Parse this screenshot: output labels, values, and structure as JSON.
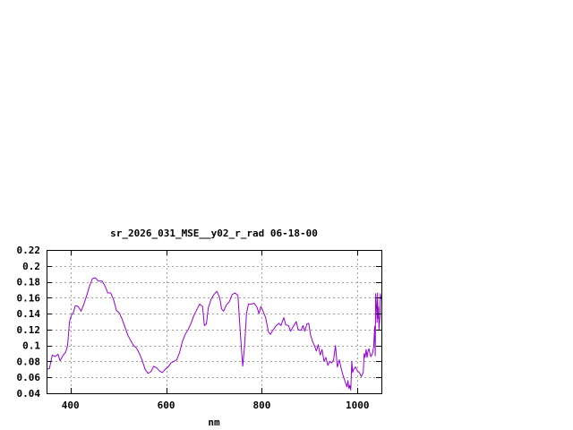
{
  "chart_data": {
    "type": "line",
    "title": "sr_2026_031_MSE__y02_r_rad 06-18-00",
    "xlabel": "nm",
    "ylabel": "",
    "xlim": [
      350,
      1050
    ],
    "ylim": [
      0.04,
      0.22
    ],
    "xticks": [
      400,
      600,
      800,
      1000
    ],
    "xtick_labels": [
      "400",
      "600",
      "800",
      "1000"
    ],
    "yticks": [
      0.04,
      0.06,
      0.08,
      0.1,
      0.12,
      0.14,
      0.16,
      0.18,
      0.2,
      0.22
    ],
    "ytick_labels": [
      "0.04",
      "0.06",
      "0.08",
      "0.1",
      "0.12",
      "0.14",
      "0.16",
      "0.18",
      "0.2",
      "0.22"
    ],
    "grid": true,
    "line_color": "#9400d3",
    "series": [
      {
        "values": [
          [
            350,
            0.07
          ],
          [
            356,
            0.071
          ],
          [
            362,
            0.088
          ],
          [
            368,
            0.086
          ],
          [
            374,
            0.089
          ],
          [
            378,
            0.081
          ],
          [
            384,
            0.087
          ],
          [
            390,
            0.092
          ],
          [
            394,
            0.1
          ],
          [
            398,
            0.13
          ],
          [
            402,
            0.138
          ],
          [
            406,
            0.141
          ],
          [
            410,
            0.15
          ],
          [
            416,
            0.149
          ],
          [
            422,
            0.143
          ],
          [
            428,
            0.152
          ],
          [
            434,
            0.163
          ],
          [
            440,
            0.175
          ],
          [
            446,
            0.184
          ],
          [
            452,
            0.185
          ],
          [
            458,
            0.181
          ],
          [
            466,
            0.181
          ],
          [
            472,
            0.175
          ],
          [
            478,
            0.166
          ],
          [
            484,
            0.166
          ],
          [
            490,
            0.158
          ],
          [
            496,
            0.144
          ],
          [
            502,
            0.141
          ],
          [
            508,
            0.133
          ],
          [
            514,
            0.123
          ],
          [
            520,
            0.113
          ],
          [
            526,
            0.106
          ],
          [
            532,
            0.1
          ],
          [
            538,
            0.097
          ],
          [
            544,
            0.09
          ],
          [
            550,
            0.081
          ],
          [
            556,
            0.07
          ],
          [
            562,
            0.065
          ],
          [
            568,
            0.067
          ],
          [
            574,
            0.074
          ],
          [
            580,
            0.072
          ],
          [
            586,
            0.068
          ],
          [
            592,
            0.066
          ],
          [
            598,
            0.07
          ],
          [
            604,
            0.073
          ],
          [
            610,
            0.078
          ],
          [
            616,
            0.08
          ],
          [
            622,
            0.082
          ],
          [
            628,
            0.091
          ],
          [
            634,
            0.105
          ],
          [
            640,
            0.114
          ],
          [
            646,
            0.12
          ],
          [
            652,
            0.128
          ],
          [
            658,
            0.138
          ],
          [
            664,
            0.145
          ],
          [
            670,
            0.152
          ],
          [
            676,
            0.149
          ],
          [
            680,
            0.125
          ],
          [
            684,
            0.127
          ],
          [
            688,
            0.147
          ],
          [
            694,
            0.158
          ],
          [
            700,
            0.164
          ],
          [
            706,
            0.168
          ],
          [
            712,
            0.16
          ],
          [
            716,
            0.146
          ],
          [
            720,
            0.143
          ],
          [
            726,
            0.151
          ],
          [
            732,
            0.155
          ],
          [
            738,
            0.164
          ],
          [
            744,
            0.166
          ],
          [
            750,
            0.163
          ],
          [
            756,
            0.108
          ],
          [
            760,
            0.074
          ],
          [
            764,
            0.1
          ],
          [
            768,
            0.14
          ],
          [
            772,
            0.152
          ],
          [
            778,
            0.152
          ],
          [
            784,
            0.153
          ],
          [
            790,
            0.148
          ],
          [
            794,
            0.14
          ],
          [
            798,
            0.149
          ],
          [
            802,
            0.144
          ],
          [
            808,
            0.135
          ],
          [
            814,
            0.117
          ],
          [
            818,
            0.114
          ],
          [
            824,
            0.12
          ],
          [
            830,
            0.125
          ],
          [
            836,
            0.128
          ],
          [
            840,
            0.125
          ],
          [
            846,
            0.135
          ],
          [
            850,
            0.126
          ],
          [
            856,
            0.125
          ],
          [
            860,
            0.118
          ],
          [
            866,
            0.124
          ],
          [
            872,
            0.13
          ],
          [
            876,
            0.12
          ],
          [
            882,
            0.119
          ],
          [
            886,
            0.125
          ],
          [
            890,
            0.118
          ],
          [
            894,
            0.127
          ],
          [
            898,
            0.128
          ],
          [
            902,
            0.113
          ],
          [
            906,
            0.105
          ],
          [
            910,
            0.1
          ],
          [
            914,
            0.093
          ],
          [
            918,
            0.101
          ],
          [
            922,
            0.088
          ],
          [
            926,
            0.095
          ],
          [
            930,
            0.08
          ],
          [
            934,
            0.085
          ],
          [
            938,
            0.075
          ],
          [
            942,
            0.08
          ],
          [
            946,
            0.078
          ],
          [
            950,
            0.082
          ],
          [
            954,
            0.1
          ],
          [
            958,
            0.073
          ],
          [
            962,
            0.082
          ],
          [
            966,
            0.071
          ],
          [
            970,
            0.062
          ],
          [
            974,
            0.055
          ],
          [
            978,
            0.048
          ],
          [
            980,
            0.056
          ],
          [
            982,
            0.046
          ],
          [
            984,
            0.05
          ],
          [
            986,
            0.044
          ],
          [
            988,
            0.08
          ],
          [
            990,
            0.066
          ],
          [
            992,
            0.07
          ],
          [
            996,
            0.073
          ],
          [
            1000,
            0.068
          ],
          [
            1004,
            0.066
          ],
          [
            1008,
            0.061
          ],
          [
            1012,
            0.066
          ],
          [
            1014,
            0.09
          ],
          [
            1016,
            0.085
          ],
          [
            1018,
            0.095
          ],
          [
            1020,
            0.085
          ],
          [
            1022,
            0.093
          ],
          [
            1024,
            0.096
          ],
          [
            1026,
            0.09
          ],
          [
            1028,
            0.086
          ],
          [
            1030,
            0.088
          ],
          [
            1032,
            0.092
          ],
          [
            1034,
            0.1
          ],
          [
            1036,
            0.124
          ],
          [
            1037,
            0.087
          ],
          [
            1038,
            0.165
          ],
          [
            1040,
            0.145
          ],
          [
            1041,
            0.129
          ],
          [
            1042,
            0.166
          ],
          [
            1043,
            0.134
          ],
          [
            1044,
            0.148
          ],
          [
            1045,
            0.12
          ],
          [
            1046,
            0.129
          ],
          [
            1047,
            0.137
          ],
          [
            1048,
            0.165
          ],
          [
            1049,
            0.16
          ],
          [
            1050,
            0.158
          ]
        ]
      }
    ]
  }
}
